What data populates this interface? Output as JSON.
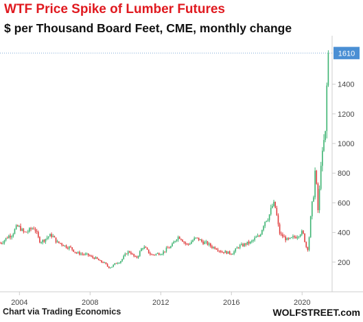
{
  "title": "WTF Price Spike of Lumber Futures",
  "subtitle": "$ per Thousand Board Feet, CME, monthly change",
  "source": "Chart via Trading Economics",
  "brand": "WOLFSTREET.com",
  "colors": {
    "up": "#3cb371",
    "down": "#e03c3c",
    "title": "#e0191f",
    "last_badge": "#4a8fd4"
  },
  "chart_data": {
    "type": "candlestick",
    "title": "WTF Price Spike of Lumber Futures",
    "subtitle": "$ per Thousand Board Feet, CME, monthly change",
    "x_tick_labels": [
      "2004",
      "2008",
      "2012",
      "2016",
      "2020"
    ],
    "y_tick_labels": [
      "200",
      "400",
      "600",
      "800",
      "1000",
      "1200",
      "1400"
    ],
    "y_ticks": [
      200,
      400,
      600,
      800,
      1000,
      1200,
      1400
    ],
    "ylim": [
      0,
      1690
    ],
    "xlim": [
      2002.9,
      2021.7
    ],
    "last_value": 1610,
    "last_value_label": "1610",
    "grid": false,
    "anchors": [
      [
        2002.9,
        330
      ],
      [
        2003.5,
        380
      ],
      [
        2003.9,
        440
      ],
      [
        2004.3,
        400
      ],
      [
        2004.8,
        430
      ],
      [
        2005.2,
        340
      ],
      [
        2005.8,
        380
      ],
      [
        2006.2,
        330
      ],
      [
        2006.8,
        300
      ],
      [
        2007.3,
        260
      ],
      [
        2007.8,
        250
      ],
      [
        2008.2,
        230
      ],
      [
        2008.7,
        200
      ],
      [
        2009.1,
        165
      ],
      [
        2009.6,
        200
      ],
      [
        2010.2,
        270
      ],
      [
        2010.6,
        230
      ],
      [
        2011.0,
        300
      ],
      [
        2011.5,
        250
      ],
      [
        2012.0,
        260
      ],
      [
        2012.5,
        300
      ],
      [
        2013.0,
        370
      ],
      [
        2013.5,
        320
      ],
      [
        2014.0,
        360
      ],
      [
        2014.5,
        330
      ],
      [
        2015.0,
        300
      ],
      [
        2015.5,
        270
      ],
      [
        2016.0,
        260
      ],
      [
        2016.5,
        310
      ],
      [
        2017.0,
        330
      ],
      [
        2017.5,
        370
      ],
      [
        2018.0,
        490
      ],
      [
        2018.4,
        590
      ],
      [
        2018.8,
        380
      ],
      [
        2019.2,
        350
      ],
      [
        2019.6,
        370
      ],
      [
        2020.0,
        400
      ],
      [
        2020.3,
        290
      ],
      [
        2020.6,
        600
      ],
      [
        2020.75,
        820
      ],
      [
        2020.9,
        550
      ],
      [
        2021.1,
        900
      ],
      [
        2021.3,
        1050
      ],
      [
        2021.45,
        1500
      ],
      [
        2021.55,
        1610
      ]
    ]
  }
}
